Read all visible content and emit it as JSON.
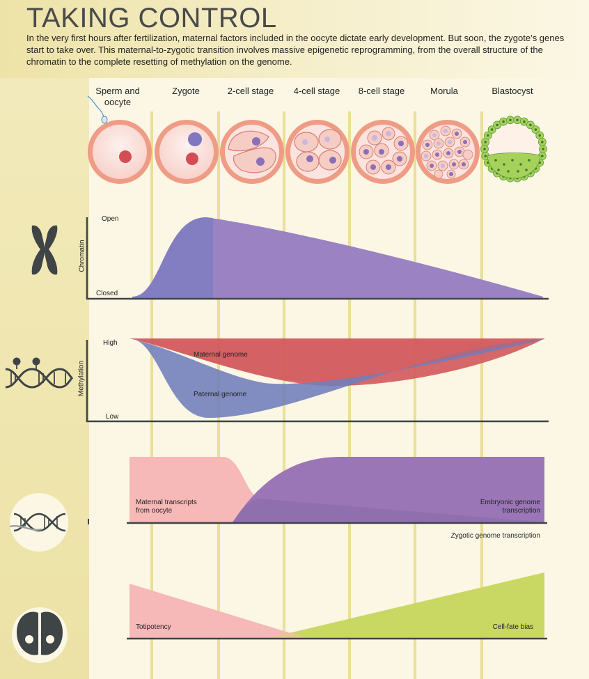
{
  "header": {
    "title": "TAKING CONTROL",
    "intro": "In the very first hours after fertilization, maternal factors included in the oocyte dictate early development. But soon, the zygote’s genes start to take over. This maternal-to-zygotic transition involves massive epigenetic reprogramming, from the overall structure of the chromatin to the complete resetting of methylation on the genome."
  },
  "stages": [
    {
      "label": "Sperm and oocyte",
      "cell": "oocyte"
    },
    {
      "label": "Zygote",
      "cell": "zygote"
    },
    {
      "label": "2-cell stage",
      "cell": "two-cell"
    },
    {
      "label": "4-cell stage",
      "cell": "four-cell"
    },
    {
      "label": "8-cell stage",
      "cell": "eight-cell"
    },
    {
      "label": "Morula",
      "cell": "morula"
    },
    {
      "label": "Blastocyst",
      "cell": "blastocyst"
    }
  ],
  "chromatin": {
    "axis_label": "Chromatin",
    "high_label": "Open",
    "low_label": "Closed",
    "icon": "chromosome-icon"
  },
  "methylation": {
    "axis_label": "Methylation",
    "high_label": "High",
    "low_label": "Low",
    "maternal_label": "Maternal genome",
    "paternal_label": "Paternal genome",
    "icon": "methylated-dna-icon"
  },
  "transcription": {
    "maternal_label": "Maternal transcripts from oocyte",
    "embryonic_label": "Embryonic genome transcription",
    "caption": "Zygotic genome transcription",
    "icon": "dna-transcription-icon"
  },
  "potency": {
    "totipotency_label": "Totipotency",
    "fate_label": "Cell-fate bias",
    "icon": "cell-pair-icon"
  },
  "colors": {
    "background": "#fbf7e4",
    "band": "#ece2a6",
    "column_line": "#e9df98",
    "cell_rim": "#ef9c86",
    "cell_fill": "#fbe4df",
    "nucleus_maternal": "#d44d55",
    "nucleus_paternal": "#7f78c0",
    "chromatin_fill": "#8f7fbf",
    "maternal_genome": "#d35b5e",
    "paternal_genome": "#6f7dbc",
    "maternal_transcripts": "#f7b8b8",
    "embryonic_transcription": "#9a76b7",
    "cell_fate": "#c9d862",
    "axis": "#3d4447"
  }
}
